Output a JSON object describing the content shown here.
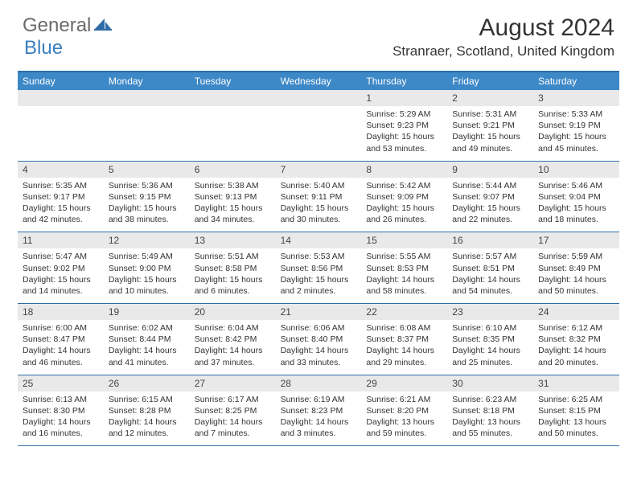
{
  "brand": {
    "part1": "General",
    "part2": "Blue"
  },
  "title": "August 2024",
  "location": "Stranraer, Scotland, United Kingdom",
  "colors": {
    "header_bg": "#3d88c7",
    "rule": "#2f6da8",
    "daynum_bg": "#e9e9e9",
    "logo_gray": "#6b6b6b",
    "logo_blue": "#3a7fbf"
  },
  "weekdays": [
    "Sunday",
    "Monday",
    "Tuesday",
    "Wednesday",
    "Thursday",
    "Friday",
    "Saturday"
  ],
  "weeks": [
    {
      "days": [
        {
          "num": "",
          "lines": []
        },
        {
          "num": "",
          "lines": []
        },
        {
          "num": "",
          "lines": []
        },
        {
          "num": "",
          "lines": []
        },
        {
          "num": "1",
          "lines": [
            "Sunrise: 5:29 AM",
            "Sunset: 9:23 PM",
            "Daylight: 15 hours and 53 minutes."
          ]
        },
        {
          "num": "2",
          "lines": [
            "Sunrise: 5:31 AM",
            "Sunset: 9:21 PM",
            "Daylight: 15 hours and 49 minutes."
          ]
        },
        {
          "num": "3",
          "lines": [
            "Sunrise: 5:33 AM",
            "Sunset: 9:19 PM",
            "Daylight: 15 hours and 45 minutes."
          ]
        }
      ]
    },
    {
      "days": [
        {
          "num": "4",
          "lines": [
            "Sunrise: 5:35 AM",
            "Sunset: 9:17 PM",
            "Daylight: 15 hours and 42 minutes."
          ]
        },
        {
          "num": "5",
          "lines": [
            "Sunrise: 5:36 AM",
            "Sunset: 9:15 PM",
            "Daylight: 15 hours and 38 minutes."
          ]
        },
        {
          "num": "6",
          "lines": [
            "Sunrise: 5:38 AM",
            "Sunset: 9:13 PM",
            "Daylight: 15 hours and 34 minutes."
          ]
        },
        {
          "num": "7",
          "lines": [
            "Sunrise: 5:40 AM",
            "Sunset: 9:11 PM",
            "Daylight: 15 hours and 30 minutes."
          ]
        },
        {
          "num": "8",
          "lines": [
            "Sunrise: 5:42 AM",
            "Sunset: 9:09 PM",
            "Daylight: 15 hours and 26 minutes."
          ]
        },
        {
          "num": "9",
          "lines": [
            "Sunrise: 5:44 AM",
            "Sunset: 9:07 PM",
            "Daylight: 15 hours and 22 minutes."
          ]
        },
        {
          "num": "10",
          "lines": [
            "Sunrise: 5:46 AM",
            "Sunset: 9:04 PM",
            "Daylight: 15 hours and 18 minutes."
          ]
        }
      ]
    },
    {
      "days": [
        {
          "num": "11",
          "lines": [
            "Sunrise: 5:47 AM",
            "Sunset: 9:02 PM",
            "Daylight: 15 hours and 14 minutes."
          ]
        },
        {
          "num": "12",
          "lines": [
            "Sunrise: 5:49 AM",
            "Sunset: 9:00 PM",
            "Daylight: 15 hours and 10 minutes."
          ]
        },
        {
          "num": "13",
          "lines": [
            "Sunrise: 5:51 AM",
            "Sunset: 8:58 PM",
            "Daylight: 15 hours and 6 minutes."
          ]
        },
        {
          "num": "14",
          "lines": [
            "Sunrise: 5:53 AM",
            "Sunset: 8:56 PM",
            "Daylight: 15 hours and 2 minutes."
          ]
        },
        {
          "num": "15",
          "lines": [
            "Sunrise: 5:55 AM",
            "Sunset: 8:53 PM",
            "Daylight: 14 hours and 58 minutes."
          ]
        },
        {
          "num": "16",
          "lines": [
            "Sunrise: 5:57 AM",
            "Sunset: 8:51 PM",
            "Daylight: 14 hours and 54 minutes."
          ]
        },
        {
          "num": "17",
          "lines": [
            "Sunrise: 5:59 AM",
            "Sunset: 8:49 PM",
            "Daylight: 14 hours and 50 minutes."
          ]
        }
      ]
    },
    {
      "days": [
        {
          "num": "18",
          "lines": [
            "Sunrise: 6:00 AM",
            "Sunset: 8:47 PM",
            "Daylight: 14 hours and 46 minutes."
          ]
        },
        {
          "num": "19",
          "lines": [
            "Sunrise: 6:02 AM",
            "Sunset: 8:44 PM",
            "Daylight: 14 hours and 41 minutes."
          ]
        },
        {
          "num": "20",
          "lines": [
            "Sunrise: 6:04 AM",
            "Sunset: 8:42 PM",
            "Daylight: 14 hours and 37 minutes."
          ]
        },
        {
          "num": "21",
          "lines": [
            "Sunrise: 6:06 AM",
            "Sunset: 8:40 PM",
            "Daylight: 14 hours and 33 minutes."
          ]
        },
        {
          "num": "22",
          "lines": [
            "Sunrise: 6:08 AM",
            "Sunset: 8:37 PM",
            "Daylight: 14 hours and 29 minutes."
          ]
        },
        {
          "num": "23",
          "lines": [
            "Sunrise: 6:10 AM",
            "Sunset: 8:35 PM",
            "Daylight: 14 hours and 25 minutes."
          ]
        },
        {
          "num": "24",
          "lines": [
            "Sunrise: 6:12 AM",
            "Sunset: 8:32 PM",
            "Daylight: 14 hours and 20 minutes."
          ]
        }
      ]
    },
    {
      "days": [
        {
          "num": "25",
          "lines": [
            "Sunrise: 6:13 AM",
            "Sunset: 8:30 PM",
            "Daylight: 14 hours and 16 minutes."
          ]
        },
        {
          "num": "26",
          "lines": [
            "Sunrise: 6:15 AM",
            "Sunset: 8:28 PM",
            "Daylight: 14 hours and 12 minutes."
          ]
        },
        {
          "num": "27",
          "lines": [
            "Sunrise: 6:17 AM",
            "Sunset: 8:25 PM",
            "Daylight: 14 hours and 7 minutes."
          ]
        },
        {
          "num": "28",
          "lines": [
            "Sunrise: 6:19 AM",
            "Sunset: 8:23 PM",
            "Daylight: 14 hours and 3 minutes."
          ]
        },
        {
          "num": "29",
          "lines": [
            "Sunrise: 6:21 AM",
            "Sunset: 8:20 PM",
            "Daylight: 13 hours and 59 minutes."
          ]
        },
        {
          "num": "30",
          "lines": [
            "Sunrise: 6:23 AM",
            "Sunset: 8:18 PM",
            "Daylight: 13 hours and 55 minutes."
          ]
        },
        {
          "num": "31",
          "lines": [
            "Sunrise: 6:25 AM",
            "Sunset: 8:15 PM",
            "Daylight: 13 hours and 50 minutes."
          ]
        }
      ]
    }
  ]
}
